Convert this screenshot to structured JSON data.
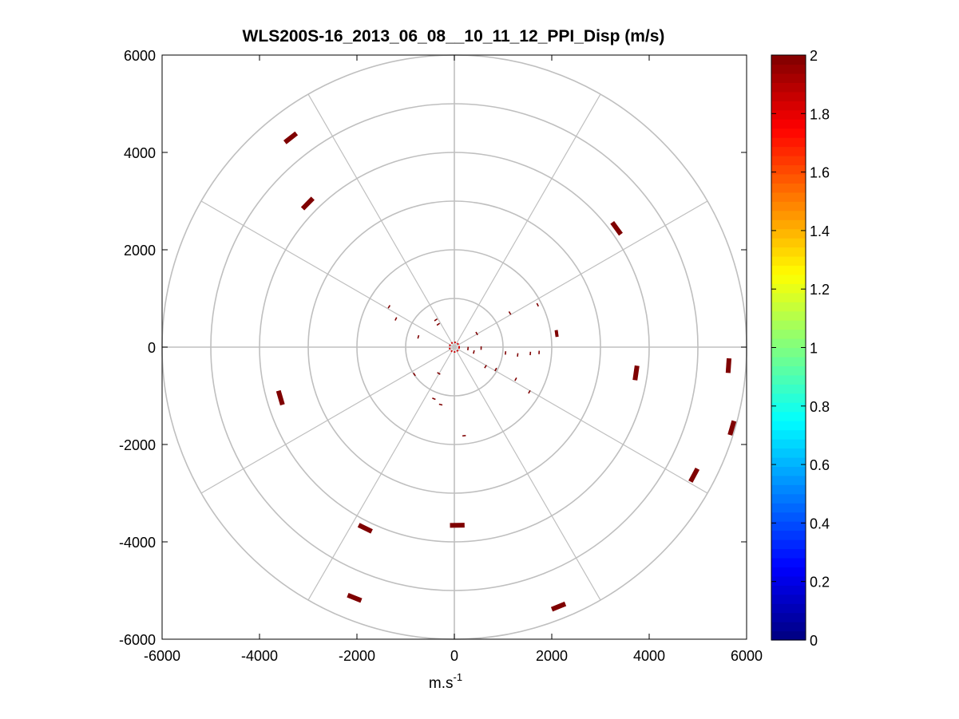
{
  "chart_data": {
    "type": "scatter",
    "title": "WLS200S-16_2013_06_08__10_11_12_PPI_Disp (m/s)",
    "xlabel": {
      "base": "m.s",
      "superscript": "-1"
    },
    "ylabel": "",
    "xlim": [
      -6000,
      6000
    ],
    "ylim": [
      -6000,
      6000
    ],
    "x_ticks": [
      -6000,
      -4000,
      -2000,
      0,
      2000,
      4000,
      6000
    ],
    "y_ticks": [
      -6000,
      -4000,
      -2000,
      0,
      2000,
      4000,
      6000
    ],
    "x_tick_labels": [
      "-6000",
      "-4000",
      "-2000",
      "0",
      "2000",
      "4000",
      "6000"
    ],
    "y_tick_labels": [
      "-6000",
      "-4000",
      "-2000",
      "0",
      "2000",
      "4000",
      "6000"
    ],
    "polar_grid": {
      "rings": [
        1000,
        2000,
        3000,
        4000,
        5000,
        6000
      ],
      "spokes_deg": [
        0,
        30,
        60,
        90,
        120,
        150,
        180,
        210,
        240,
        270,
        300,
        330
      ]
    },
    "colorbar": {
      "colormap": "jet",
      "range": [
        0,
        2
      ],
      "ticks": [
        0,
        0.2,
        0.4,
        0.6,
        0.8,
        1,
        1.2,
        1.4,
        1.6,
        1.8,
        2
      ],
      "tick_labels": [
        "0",
        "0.2",
        "0.4",
        "0.6",
        "0.8",
        "1",
        "1.2",
        "1.4",
        "1.6",
        "1.8",
        "2"
      ]
    },
    "marker_color": "#7f0000",
    "series": [
      {
        "points": [
          {
            "x": -3360,
            "y": 4300,
            "w": 4
          },
          {
            "x": -3010,
            "y": 2950,
            "w": 4
          },
          {
            "x": 3330,
            "y": 2440,
            "w": 3
          },
          {
            "x": 5630,
            "y": -380,
            "w": 4
          },
          {
            "x": 5700,
            "y": -1660,
            "w": 4
          },
          {
            "x": 4920,
            "y": -2630,
            "w": 4
          },
          {
            "x": 3730,
            "y": -530,
            "w": 4
          },
          {
            "x": 2100,
            "y": 280,
            "w": 2
          },
          {
            "x": -3570,
            "y": -1040,
            "w": 4
          },
          {
            "x": -1830,
            "y": -3720,
            "w": 4
          },
          {
            "x": 60,
            "y": -3660,
            "w": 4
          },
          {
            "x": -2050,
            "y": -5150,
            "w": 4
          },
          {
            "x": 2140,
            "y": -5330,
            "w": 4
          },
          {
            "x": 1710,
            "y": 870,
            "w": 1
          },
          {
            "x": -1340,
            "y": 830,
            "w": 1
          },
          {
            "x": -1200,
            "y": 580,
            "w": 1
          },
          {
            "x": -740,
            "y": 210,
            "w": 1
          },
          {
            "x": -380,
            "y": 560,
            "w": 1
          },
          {
            "x": -330,
            "y": 470,
            "w": 1
          },
          {
            "x": 1140,
            "y": 700,
            "w": 1
          },
          {
            "x": 460,
            "y": 280,
            "w": 1
          },
          {
            "x": 1050,
            "y": -120,
            "w": 1
          },
          {
            "x": 1300,
            "y": -160,
            "w": 1
          },
          {
            "x": 1560,
            "y": -130,
            "w": 1
          },
          {
            "x": 1740,
            "y": -110,
            "w": 1
          },
          {
            "x": 640,
            "y": -400,
            "w": 1
          },
          {
            "x": 850,
            "y": -460,
            "w": 1
          },
          {
            "x": 1260,
            "y": -660,
            "w": 1
          },
          {
            "x": 1540,
            "y": -920,
            "w": 1
          },
          {
            "x": 550,
            "y": -20,
            "w": 1
          },
          {
            "x": 400,
            "y": -100,
            "w": 1
          },
          {
            "x": 280,
            "y": -30,
            "w": 1
          },
          {
            "x": -420,
            "y": -1060,
            "w": 1
          },
          {
            "x": -280,
            "y": -1180,
            "w": 1
          },
          {
            "x": 200,
            "y": -1820,
            "w": 1
          },
          {
            "x": -820,
            "y": -560,
            "w": 1
          },
          {
            "x": -320,
            "y": -540,
            "w": 1
          }
        ]
      }
    ]
  }
}
